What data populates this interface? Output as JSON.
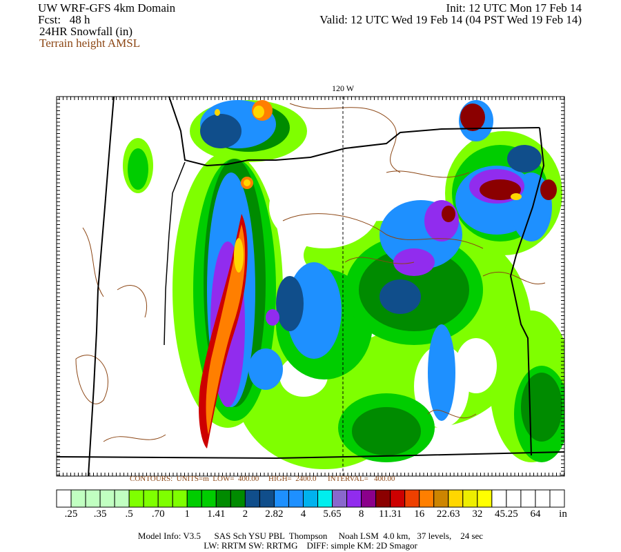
{
  "header": {
    "model": "UW WRF-GFS 4km Domain",
    "forecast": "Fcst:   48 h",
    "field": "24HR Snowfall (in)",
    "overlay": "Terrain height AMSL",
    "init": "Init: 12 UTC Mon 17 Feb 14",
    "valid": "Valid: 12 UTC Wed 19 Feb 14 (04 PST Wed 19 Feb 14)"
  },
  "map": {
    "meridian_label": "120 W",
    "contours_text": "CONTOURS:  UNITS=m  LOW=  400.00     HIGH=  2400.0      INTERVAL=   400.00",
    "terrain_contour_color": "#8b4513",
    "border_color": "#000000"
  },
  "colorbar": {
    "colors": [
      "#ffffff",
      "#c1ffc1",
      "#c1ffc1",
      "#c1ffc1",
      "#c1ffc1",
      "#7fff00",
      "#7fff00",
      "#7fff00",
      "#7fff00",
      "#00cd00",
      "#00cd00",
      "#008b00",
      "#008b00",
      "#104e8b",
      "#104e8b",
      "#1e90ff",
      "#1e90ff",
      "#00b2ee",
      "#00eeee",
      "#8968cd",
      "#912cee",
      "#8b008b",
      "#8b0000",
      "#cd0000",
      "#ee4000",
      "#ff7f00",
      "#cd8500",
      "#ffd700",
      "#eeee00",
      "#ffff00",
      "#ffffff",
      "#ffffff",
      "#ffffff",
      "#ffffff",
      "#ffffff"
    ],
    "labels": [
      ".25",
      ".35",
      ".5",
      ".70",
      "1",
      "1.41",
      "2",
      "2.82",
      "4",
      "5.65",
      "8",
      "11.31",
      "16",
      "22.63",
      "32",
      "45.25",
      "64"
    ],
    "unit": "in"
  },
  "footer": {
    "line1": "Model Info: V3.5      SAS Sch YSU PBL  Thompson     Noah LSM  4.0 km,   37 levels,    24 sec",
    "line2": "LW: RRTM SW: RRTMG    DIFF: simple KM: 2D Smagor"
  }
}
